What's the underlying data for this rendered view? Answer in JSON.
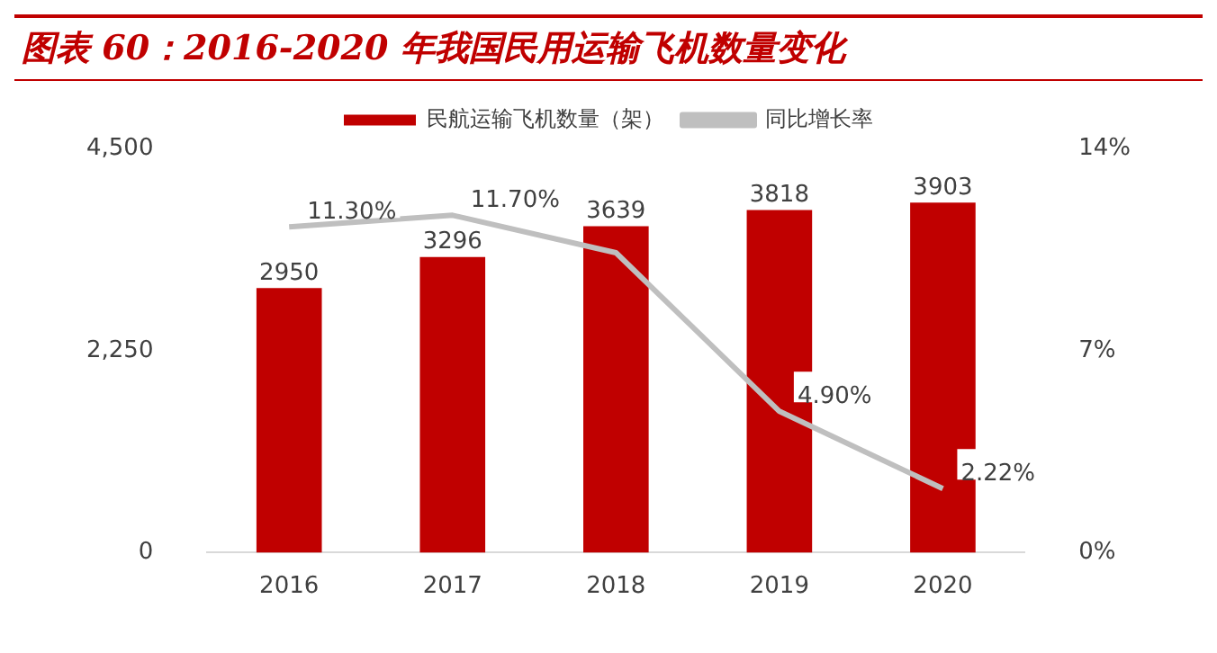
{
  "chart_data": {
    "type": "bar",
    "title": "图表 60：2016-2020 年我国民用运输飞机数量变化",
    "categories": [
      "2016",
      "2017",
      "2018",
      "2019",
      "2020"
    ],
    "series": [
      {
        "name": "民航运输飞机数量（架）",
        "color": "#c00000",
        "values": [
          2950,
          3296,
          3639,
          3818,
          3903
        ],
        "value_labels": [
          "2950",
          "3296",
          "3639",
          "3818",
          "3903"
        ]
      },
      {
        "name": "同比增长率",
        "type": "line",
        "color": "#bfbfbf",
        "axis": "y2",
        "values": [
          11.3,
          11.7,
          10.4,
          4.9,
          2.22
        ],
        "value_labels": [
          "11.30%",
          "11.70%",
          null,
          "4.90%",
          "2.22%"
        ]
      }
    ],
    "ylim": [
      0,
      4500
    ],
    "yticks": [
      {
        "value": 0,
        "label": "0"
      },
      {
        "value": 2250,
        "label": "2,250"
      },
      {
        "value": 4500,
        "label": "4,500"
      }
    ],
    "y2lim": [
      0,
      14
    ],
    "y2ticks": [
      {
        "value": 0,
        "label": "0%"
      },
      {
        "value": 7,
        "label": "7%"
      },
      {
        "value": 14,
        "label": "14%"
      }
    ],
    "grid": false,
    "legend": "top",
    "marker": "none"
  }
}
